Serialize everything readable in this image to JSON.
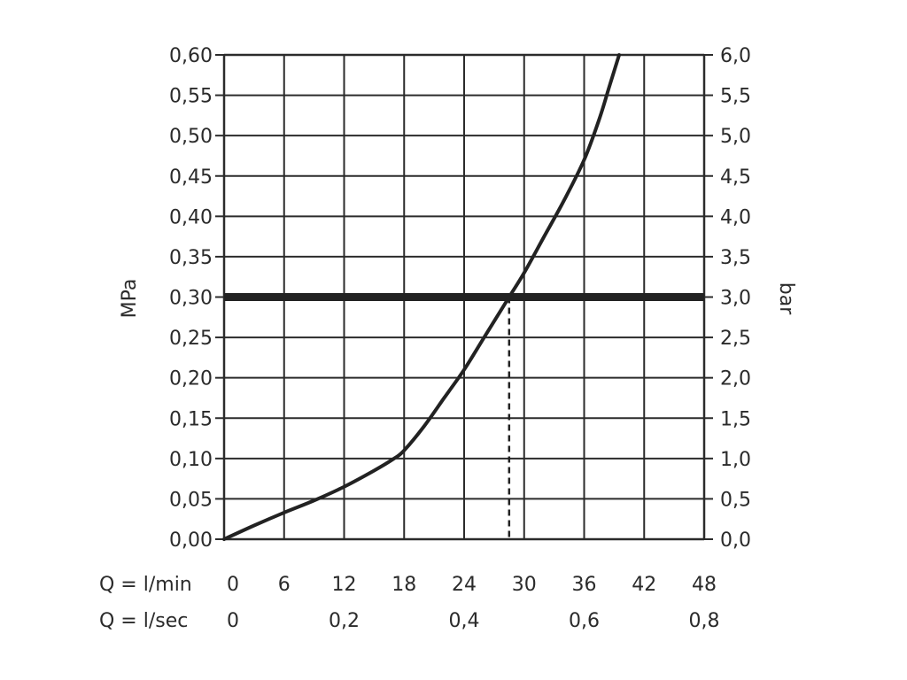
{
  "chart_data": {
    "type": "line",
    "title": "",
    "ylabel_left": "MPa",
    "ylabel_right": "bar",
    "ylim": [
      0,
      0.6
    ],
    "xlim": [
      0,
      48
    ],
    "grid": true,
    "x_ticks_lmin": [
      "0",
      "6",
      "12",
      "18",
      "24",
      "30",
      "36",
      "42",
      "48"
    ],
    "x_ticks_lsec": [
      "0",
      "0,2",
      "0,4",
      "0,6",
      "0,8"
    ],
    "x_label_lmin": "Q = l/min",
    "x_label_lsec": "Q = l/sec",
    "y_ticks_left": [
      "0,00",
      "0,05",
      "0,10",
      "0,15",
      "0,20",
      "0,25",
      "0,30",
      "0,35",
      "0,40",
      "0,45",
      "0,50",
      "0,55",
      "0,60"
    ],
    "y_ticks_right": [
      "0,0",
      "0,5",
      "1,0",
      "1,5",
      "2,0",
      "2,5",
      "3,0",
      "3,5",
      "4,0",
      "4,5",
      "5,0",
      "5,5",
      "6,0"
    ],
    "series": [
      {
        "x": [
          0,
          3,
          6,
          9,
          12,
          15,
          17,
          18,
          20,
          22,
          24,
          26,
          28.5,
          30,
          32,
          34,
          36,
          37.5,
          38.5,
          39.5
        ],
        "values": [
          0,
          0.017,
          0.033,
          0.048,
          0.065,
          0.085,
          0.1,
          0.11,
          0.14,
          0.175,
          0.21,
          0.25,
          0.3,
          0.33,
          0.375,
          0.42,
          0.47,
          0.52,
          0.56,
          0.6
        ]
      }
    ],
    "reference_line_y": 0.3,
    "reference_marker_x": 28.5,
    "colors": {
      "curve": "#222222",
      "grid": "#2b2b2b",
      "reference": "#222222"
    }
  }
}
